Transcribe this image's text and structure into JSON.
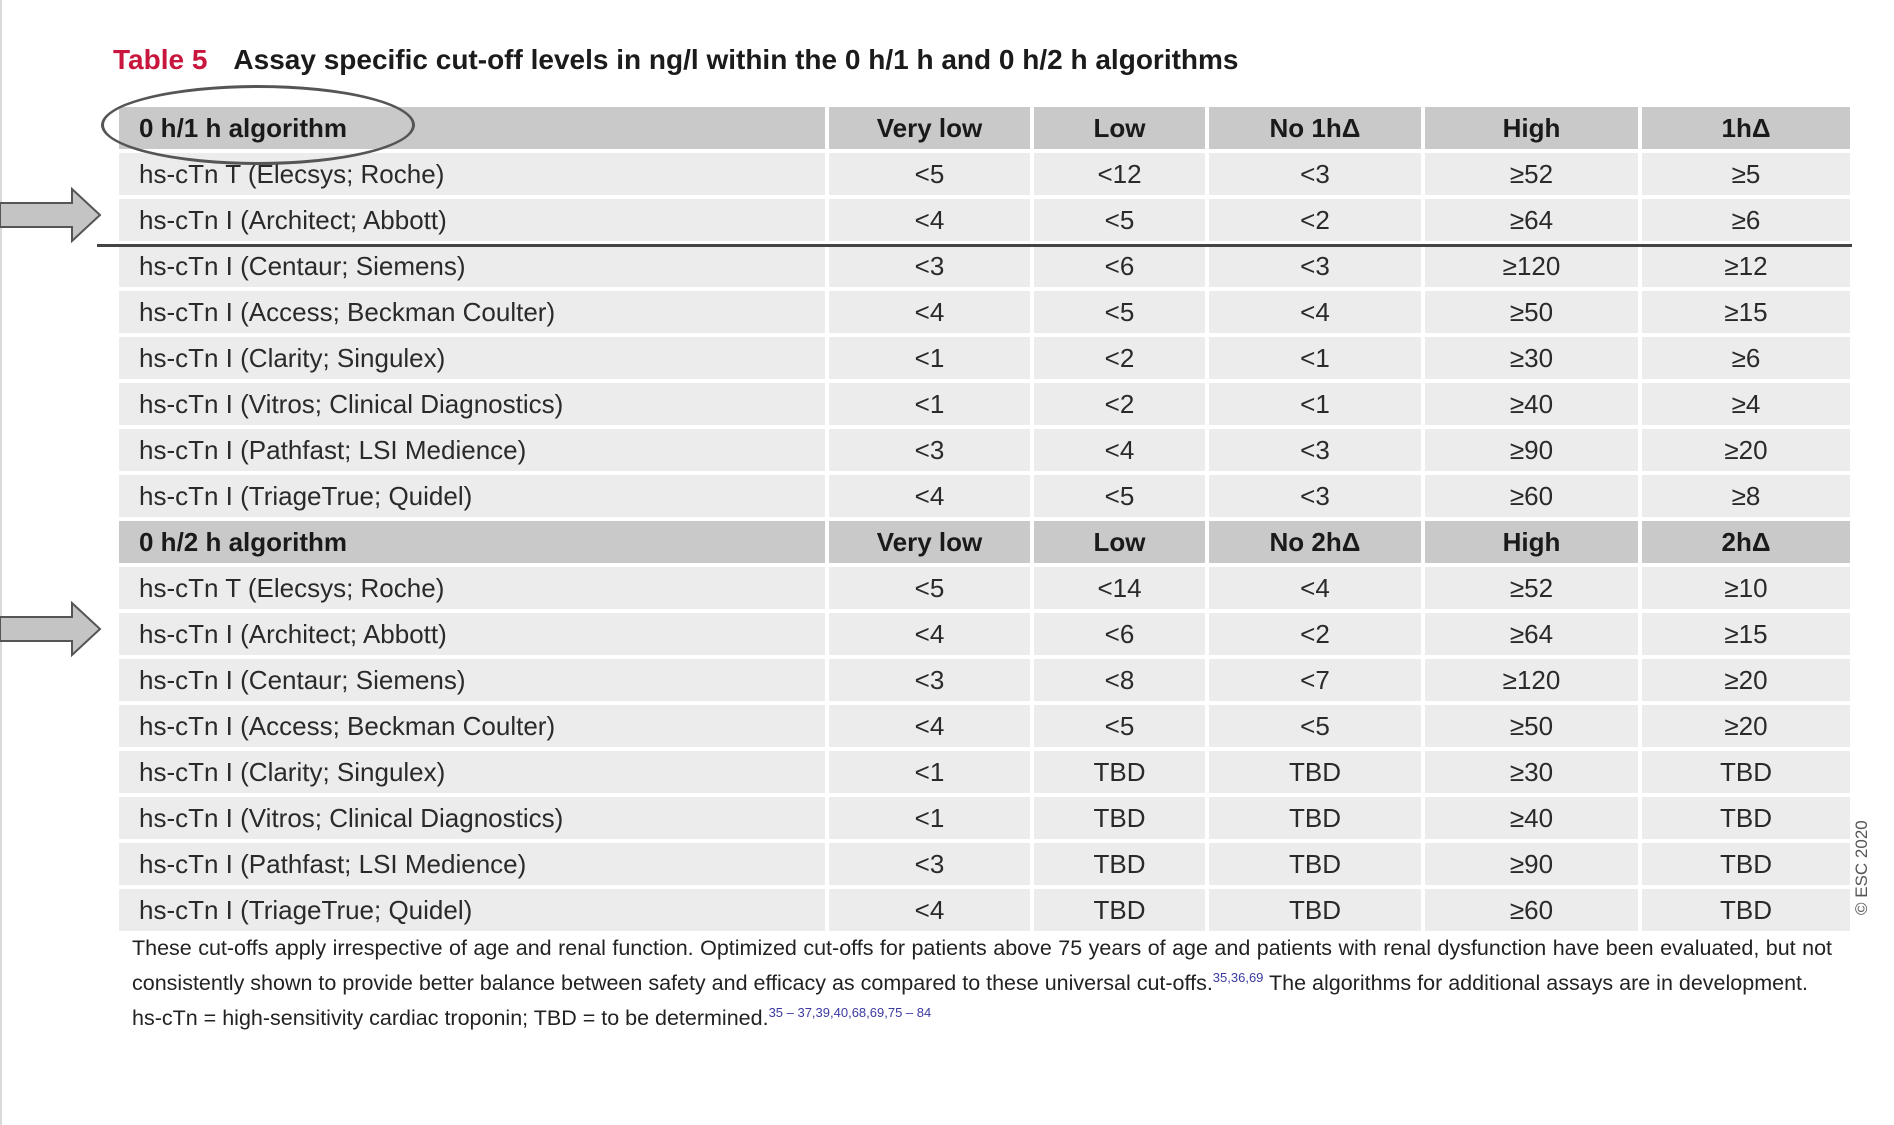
{
  "title": {
    "label": "Table 5",
    "text": "Assay specific cut-off levels in ng/l within the 0 h/1 h and 0 h/2 h algorithms"
  },
  "algo1": {
    "header": [
      "0 h/1 h algorithm",
      "Very low",
      "Low",
      "No 1hΔ",
      "High",
      "1hΔ"
    ],
    "rows": [
      [
        "hs-cTn T (Elecsys; Roche)",
        "<5",
        "<12",
        "<3",
        "≥52",
        "≥5"
      ],
      [
        "hs-cTn I (Architect; Abbott)",
        "<4",
        "<5",
        "<2",
        "≥64",
        "≥6"
      ],
      [
        "hs-cTn I (Centaur; Siemens)",
        "<3",
        "<6",
        "<3",
        "≥120",
        "≥12"
      ],
      [
        "hs-cTn I (Access; Beckman Coulter)",
        "<4",
        "<5",
        "<4",
        "≥50",
        "≥15"
      ],
      [
        "hs-cTn I (Clarity; Singulex)",
        "<1",
        "<2",
        "<1",
        "≥30",
        "≥6"
      ],
      [
        "hs-cTn I (Vitros; Clinical Diagnostics)",
        "<1",
        "<2",
        "<1",
        "≥40",
        "≥4"
      ],
      [
        "hs-cTn I (Pathfast; LSI Medience)",
        "<3",
        "<4",
        "<3",
        "≥90",
        "≥20"
      ],
      [
        "hs-cTn I (TriageTrue; Quidel)",
        "<4",
        "<5",
        "<3",
        "≥60",
        "≥8"
      ]
    ]
  },
  "algo2": {
    "header": [
      "0 h/2 h algorithm",
      "Very low",
      "Low",
      "No 2hΔ",
      "High",
      "2hΔ"
    ],
    "rows": [
      [
        "hs-cTn T (Elecsys; Roche)",
        "<5",
        "<14",
        "<4",
        "≥52",
        "≥10"
      ],
      [
        "hs-cTn I (Architect; Abbott)",
        "<4",
        "<6",
        "<2",
        "≥64",
        "≥15"
      ],
      [
        "hs-cTn I (Centaur; Siemens)",
        "<3",
        "<8",
        "<7",
        "≥120",
        "≥20"
      ],
      [
        "hs-cTn I (Access; Beckman Coulter)",
        "<4",
        "<5",
        "<5",
        "≥50",
        "≥20"
      ],
      [
        "hs-cTn I (Clarity; Singulex)",
        "<1",
        "TBD",
        "TBD",
        "≥30",
        "TBD"
      ],
      [
        "hs-cTn I (Vitros; Clinical Diagnostics)",
        "<1",
        "TBD",
        "TBD",
        "≥40",
        "TBD"
      ],
      [
        "hs-cTn I (Pathfast; LSI Medience)",
        "<3",
        "TBD",
        "TBD",
        "≥90",
        "TBD"
      ],
      [
        "hs-cTn I (TriageTrue; Quidel)",
        "<4",
        "TBD",
        "TBD",
        "≥60",
        "TBD"
      ]
    ]
  },
  "footnote": {
    "text1": "These cut-offs apply irrespective of age and renal function. Optimized cut-offs for patients above 75 years of age and patients with renal dysfunction have been evaluated, but not consistently shown to provide better balance between safety and efficacy as compared to these universal cut-offs.",
    "ref1": "35,36,69",
    "text2": " The algorithms for additional assays are in development.",
    "abbrev": "hs-cTn = high-sensitivity cardiac troponin; TBD = to be determined.",
    "ref2": "35 – 37,39,40,68,69,75 – 84"
  },
  "copyright": "© ESC 2020",
  "colors": {
    "title_label": "#c8163c",
    "header_bg": "#c9c9c9",
    "row_bg": "#ececec",
    "arrow_fill": "#c4c4c4"
  }
}
